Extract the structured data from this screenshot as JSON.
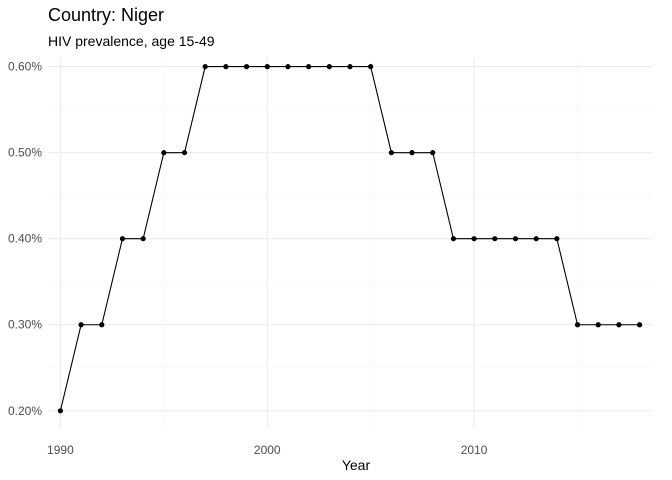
{
  "chart_data": {
    "type": "line",
    "title": "Country: Niger",
    "subtitle": "HIV prevalence, age 15-49",
    "xlabel": "Year",
    "ylabel": "",
    "xlim": [
      1989.4,
      2018.6
    ],
    "ylim": [
      0.0018,
      0.0061
    ],
    "x_ticks": [
      1990,
      2000,
      2010
    ],
    "x_minor_ticks": [
      1995,
      2005,
      2015
    ],
    "y_ticks": [
      0.002,
      0.003,
      0.004,
      0.005,
      0.006
    ],
    "y_tick_labels": [
      "0.20%",
      "0.30%",
      "0.40%",
      "0.50%",
      "0.60%"
    ],
    "y_minor_ticks": [
      0.0025,
      0.0035,
      0.0045,
      0.0055
    ],
    "grid": true,
    "legend": "none",
    "series": [
      {
        "x": [
          1990,
          1991,
          1992,
          1993,
          1994,
          1995,
          1996,
          1997,
          1998,
          1999,
          2000,
          2001,
          2002,
          2003,
          2004,
          2005,
          2006,
          2007,
          2008,
          2009,
          2010,
          2011,
          2012,
          2013,
          2014,
          2015,
          2016,
          2017,
          2018
        ],
        "values": [
          0.002,
          0.003,
          0.003,
          0.004,
          0.004,
          0.005,
          0.005,
          0.006,
          0.006,
          0.006,
          0.006,
          0.006,
          0.006,
          0.006,
          0.006,
          0.006,
          0.005,
          0.005,
          0.005,
          0.004,
          0.004,
          0.004,
          0.004,
          0.004,
          0.004,
          0.003,
          0.003,
          0.003,
          0.003
        ],
        "color": "#000000"
      }
    ],
    "colors": {
      "grid_major": "#ebebeb",
      "grid_minor": "#f5f5f5",
      "line": "#000000",
      "tick_text": "#4d4d4d"
    }
  }
}
